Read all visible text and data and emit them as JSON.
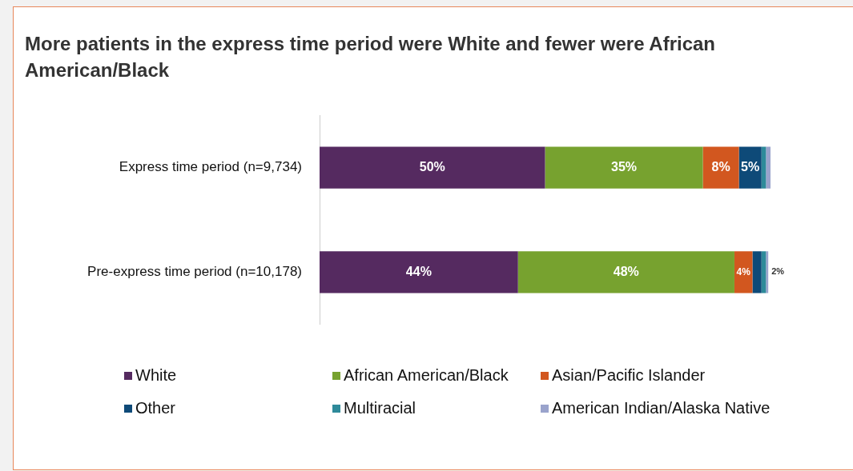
{
  "chart_data": {
    "type": "bar",
    "orientation": "horizontal",
    "stacked": true,
    "title": "More patients in the express time period were White and fewer were African American/Black",
    "categories": [
      "Express time period (n=9,734)",
      "Pre-express time period (n=10,178)"
    ],
    "legend": "bottom",
    "series": [
      {
        "name": "White",
        "color": "#552a60",
        "values": [
          50,
          44
        ],
        "value_labels": [
          "50%",
          "44%"
        ]
      },
      {
        "name": "African American/Black",
        "color": "#77a22f",
        "values": [
          35,
          48
        ],
        "value_labels": [
          "35%",
          "48%"
        ]
      },
      {
        "name": "Asian/Pacific Islander",
        "color": "#d2571f",
        "values": [
          8,
          4
        ],
        "value_labels": [
          "8%",
          "4%"
        ]
      },
      {
        "name": "Other",
        "color": "#0e4a78",
        "values": [
          5,
          2
        ],
        "value_labels": [
          "5%",
          "2%"
        ]
      },
      {
        "name": "Multiracial",
        "color": "#2e8a9a",
        "values": [
          1,
          1
        ],
        "value_labels": [
          null,
          null
        ]
      },
      {
        "name": "American Indian/Alaska Native",
        "color": "#9aa3cc",
        "values": [
          1,
          0.5
        ],
        "value_labels": [
          null,
          null
        ]
      }
    ]
  }
}
